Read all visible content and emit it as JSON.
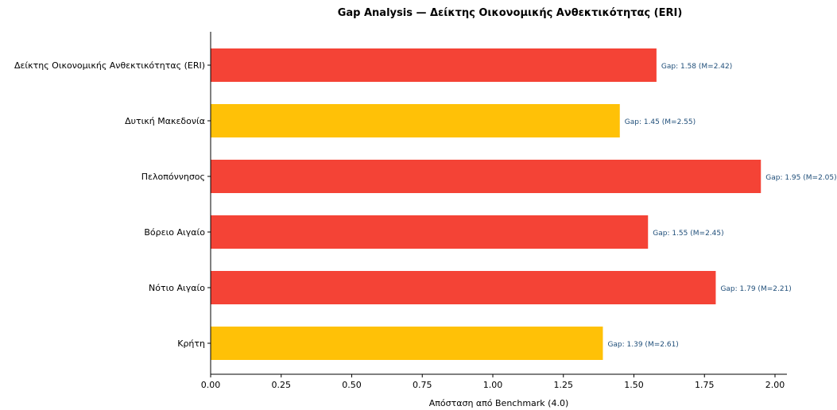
{
  "chart_data": {
    "type": "bar",
    "orientation": "horizontal",
    "title": "Gap Analysis — Δείκτης Οικονομικής Ανθεκτικότητας (ERI)",
    "xlabel": "Απόσταση από Benchmark (4.0)",
    "ylabel": "",
    "xlim": [
      0,
      2.05
    ],
    "xticks": [
      "0.00",
      "0.25",
      "0.50",
      "0.75",
      "1.00",
      "1.25",
      "1.50",
      "1.75",
      "2.00"
    ],
    "grid": false,
    "categories": [
      "Δείκτης Οικονομικής Ανθεκτικότητας (ERI)",
      "Δυτική Μακεδονία",
      "Πελοπόννησος",
      "Βόρειο Αιγαίο",
      "Νότιο Αιγαίο",
      "Κρήτη"
    ],
    "values": [
      1.58,
      1.45,
      1.95,
      1.55,
      1.79,
      1.39
    ],
    "bar_colors": [
      "#f44336",
      "#ffc107",
      "#f44336",
      "#f44336",
      "#f44336",
      "#ffc107"
    ],
    "data_labels": [
      "Gap: 1.58 (M=2.42)",
      "Gap: 1.45 (M=2.55)",
      "Gap: 1.95 (M=2.05)",
      "Gap: 1.55 (M=2.45)",
      "Gap: 1.79 (M=2.21)",
      "Gap: 1.39 (M=2.61)"
    ],
    "label_color": "#1f4e79"
  }
}
